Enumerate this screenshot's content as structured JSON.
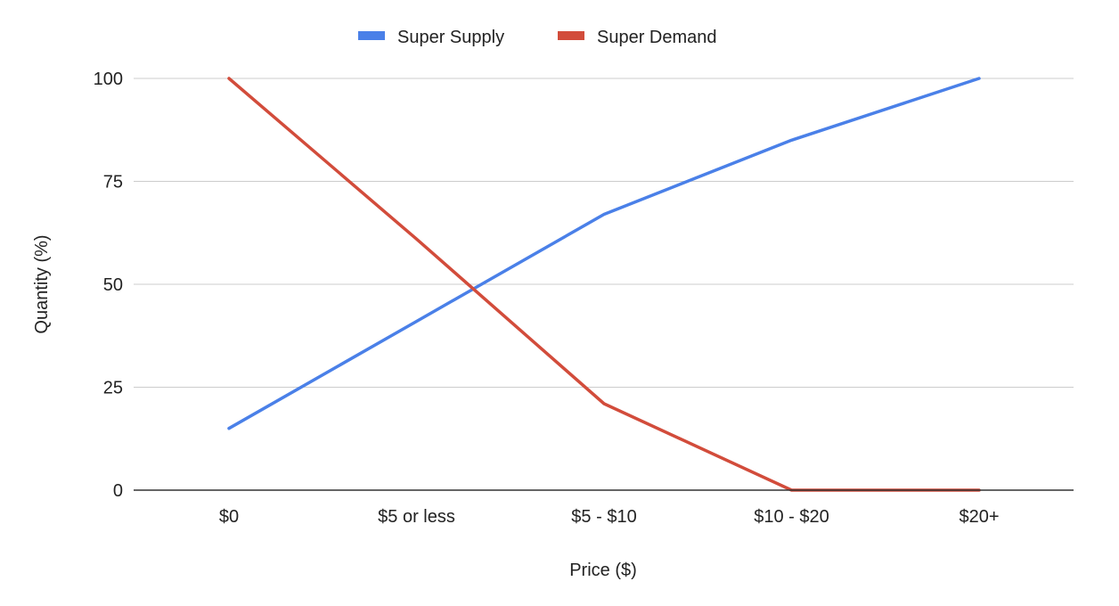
{
  "chart_data": {
    "type": "line",
    "title": "",
    "xlabel": "Price ($)",
    "ylabel": "Quantity (%)",
    "categories": [
      "$0",
      "$5 or less",
      "$5 - $10",
      "$10 - $20",
      "$20+"
    ],
    "series": [
      {
        "name": "Super Supply",
        "color": "#4a80e8",
        "values": [
          15,
          41,
          67,
          85,
          100
        ]
      },
      {
        "name": "Super Demand",
        "color": "#d24c3b",
        "values": [
          100,
          61,
          21,
          0,
          0
        ]
      }
    ],
    "ylim": [
      0,
      100
    ],
    "yticks": [
      "0",
      "25",
      "50",
      "75",
      "100"
    ],
    "grid": true,
    "legend_position": "top-center"
  }
}
